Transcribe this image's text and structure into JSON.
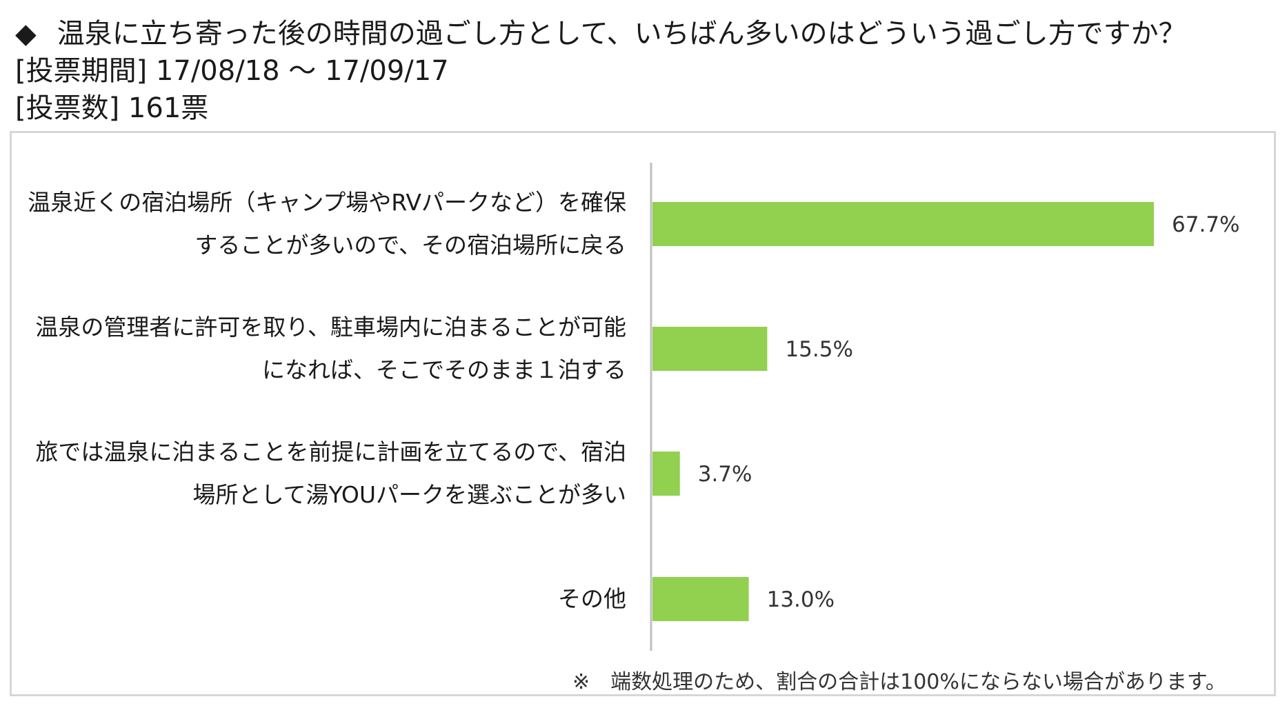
{
  "header": {
    "marker": "◆",
    "question": "温泉に立ち寄った後の時間の過ごし方として、いちばん多いのはどういう過ごし方ですか？",
    "period": "[投票期間] 17/08/18 ～ 17/09/17",
    "votes": "[投票数] 161票"
  },
  "chart_data": {
    "type": "bar",
    "orientation": "horizontal",
    "categories": [
      [
        "温泉近くの宿泊場所（キャンプ場やRVパークなど）を確保",
        "することが多いので、その宿泊場所に戻る"
      ],
      [
        "温泉の管理者に許可を取り、駐車場内に泊まることが可能",
        "になれば、そこでそのまま１泊する"
      ],
      [
        "旅では温泉に泊まることを前提に計画を立てるので、宿泊",
        "場所として湯YOUパークを選ぶことが多い"
      ],
      [
        "その他"
      ]
    ],
    "values": [
      67.7,
      15.5,
      3.7,
      13.0
    ],
    "value_labels": [
      "67.7%",
      "15.5%",
      "3.7%",
      "13.0%"
    ],
    "bar_color": "#92d050",
    "axis_color": "#bfbfbf",
    "xlim": [
      0,
      100
    ],
    "grid": false,
    "legend": "none"
  },
  "footnote": "※　端数処理のため、割合の合計は100%にならない場合があります。"
}
